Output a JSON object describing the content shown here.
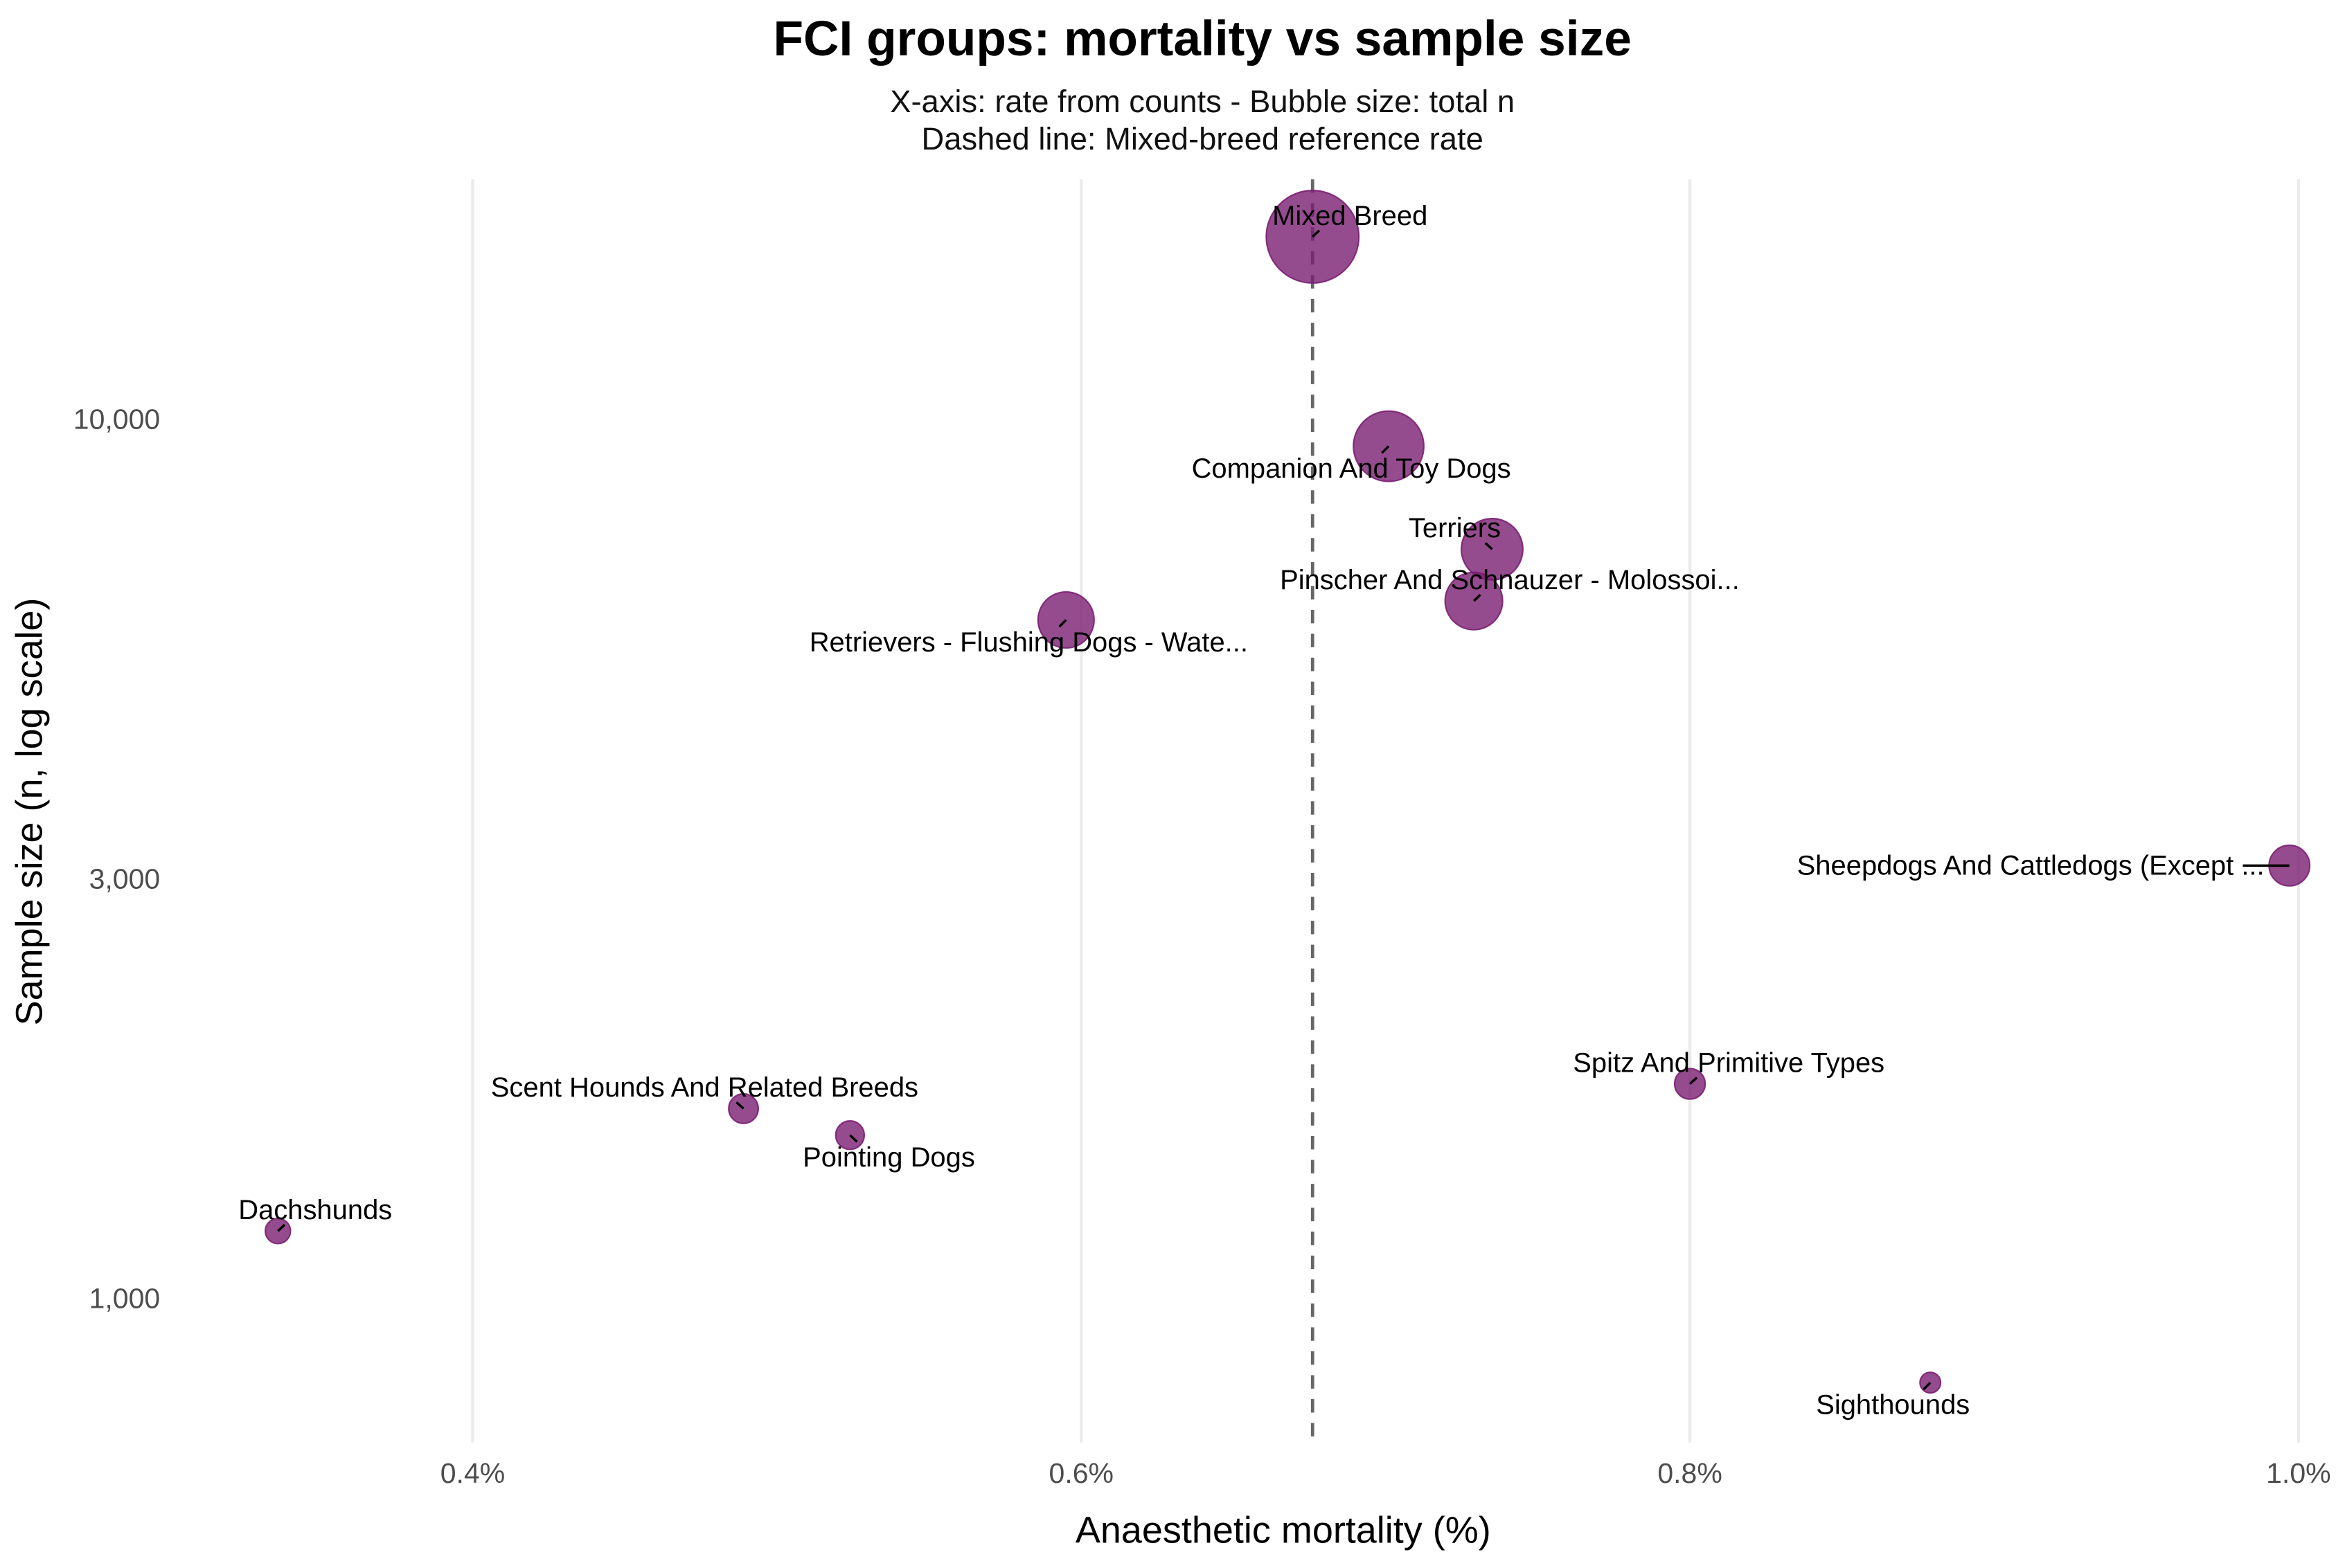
{
  "chart_data": {
    "type": "scatter",
    "title": "FCI groups: mortality vs sample size",
    "subtitle": [
      "X-axis: rate from counts - Bubble size: total n",
      "Dashed line: Mixed-breed reference rate"
    ],
    "xlabel": "Anaesthetic mortality (%)",
    "ylabel": "Sample size (n, log scale)",
    "xlim": [
      0.368,
      1.005
    ],
    "ylim_log": [
      720,
      19000
    ],
    "y_scale": "log10",
    "x_ticks": [
      {
        "value": 0.4,
        "label": "0.4%"
      },
      {
        "value": 0.6,
        "label": "0.6%"
      },
      {
        "value": 0.8,
        "label": "0.8%"
      },
      {
        "value": 1.0,
        "label": "1.0%"
      }
    ],
    "y_ticks": [
      {
        "value": 1000,
        "label": "1,000"
      },
      {
        "value": 3000,
        "label": "3,000"
      },
      {
        "value": 10000,
        "label": "10,000"
      }
    ],
    "grid": "vertical major",
    "reference_line": {
      "x": 0.676,
      "style": "dashed",
      "color": "#666666"
    },
    "bubble_color": "#7b1f72",
    "points": [
      {
        "label": "Mixed Breed",
        "x": 0.676,
        "n": 16100
      },
      {
        "label": "Companion And Toy Dogs",
        "x": 0.701,
        "n": 9300
      },
      {
        "label": "Terriers",
        "x": 0.735,
        "n": 7100
      },
      {
        "label": "Pinscher And Schnauzer - Molossoi...",
        "x": 0.729,
        "n": 6200
      },
      {
        "label": "Retrievers - Flushing Dogs - Wate...",
        "x": 0.595,
        "n": 5900
      },
      {
        "label": "Sheepdogs And Cattledogs (Except ...",
        "x": 0.997,
        "n": 3100
      },
      {
        "label": "Spitz And Primitive Types",
        "x": 0.8,
        "n": 1750
      },
      {
        "label": "Scent Hounds And Related Breeds",
        "x": 0.489,
        "n": 1640
      },
      {
        "label": "Pointing Dogs",
        "x": 0.524,
        "n": 1530
      },
      {
        "label": "Dachshunds",
        "x": 0.336,
        "n": 1190
      },
      {
        "label": "Sighthounds",
        "x": 0.879,
        "n": 800
      }
    ]
  }
}
